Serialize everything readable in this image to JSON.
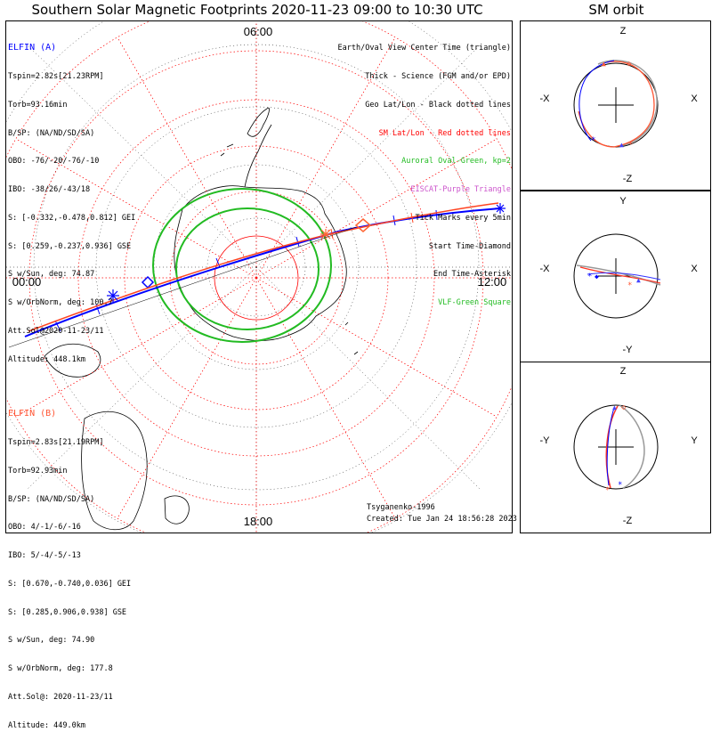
{
  "title": "Southern Solar Magnetic Footprints 2020-11-23 09:00 to 10:30 UTC",
  "orbit_title": "SM orbit",
  "map": {
    "mlt_top": "06:00",
    "mlt_left": "00:00",
    "mlt_right": "12:00",
    "mlt_bottom": "18:00"
  },
  "elfin_a": {
    "header": "ELFIN (A)",
    "lines": [
      "Tspin=2.82s[21.23RPM]",
      "Torb=93.16min",
      "B/SP: (NA/ND/SD/SA)",
      "OBO: -76/-20/-76/-10",
      "IBO: -38/26/-43/18",
      "S: [-0.332,-0.478,0.812] GEI",
      "S: [0.259,-0.237,0.936] GSE",
      "S w/Sun, deg: 74.87",
      "S w/OrbNorm, deg: 100.7",
      "Att.Sol@2020-11-23/11",
      "Altitude: 448.1km"
    ]
  },
  "elfin_b": {
    "header": "ELFIN (B)",
    "lines": [
      "Tspin=2.83s[21.19RPM]",
      "Torb=92.93min",
      "B/SP: (NA/ND/SD/SA)",
      "OBO: 4/-1/-6/-16",
      "IBO: 5/-4/-5/-13",
      "S: [0.670,-0.740,0.036] GEI",
      "S: [0.285,0.906,0.938] GSE",
      "S w/Sun, deg: 74.90",
      "S w/OrbNorm, deg: 177.8",
      "Att.Sol@: 2020-11-23/11",
      "Altitude: 449.0km"
    ]
  },
  "legend": [
    {
      "text": "Earth/Oval View Center Time (triangle)",
      "color": "#000000"
    },
    {
      "text": "Thick - Science (FGM and/or EPD)",
      "color": "#000000"
    },
    {
      "text": "Geo Lat/Lon - Black dotted lines",
      "color": "#000000"
    },
    {
      "text": "SM Lat/Lon - Red dotted lines",
      "color": "#ff0000"
    },
    {
      "text": "Auroral Oval-Green, kp=2",
      "color": "#22bb22"
    },
    {
      "text": "EISCAT-Purple Triangle",
      "color": "#cc55cc"
    },
    {
      "text": "Tick Marks every 5min",
      "color": "#000000"
    },
    {
      "text": "Start Time-Diamond",
      "color": "#000000"
    },
    {
      "text": "End Time-Asterisk",
      "color": "#000000"
    },
    {
      "text": "VLF-Green Square",
      "color": "#22bb22"
    }
  ],
  "credit": "Tsyganenko-1996",
  "created": "Created: Tue Jan 24 18:56:28 2023",
  "panels": [
    {
      "top": "Z",
      "bottom": "-Z",
      "left": "-X",
      "right": "X"
    },
    {
      "top": "Y",
      "bottom": "-Y",
      "left": "-X",
      "right": "X"
    },
    {
      "top": "Z",
      "bottom": "-Z",
      "left": "-Y",
      "right": "Y"
    }
  ],
  "colors": {
    "elfin_a": "#0000ff",
    "elfin_b": "#ff0000",
    "oval": "#22bb22",
    "sm_grid": "#ff0000"
  }
}
